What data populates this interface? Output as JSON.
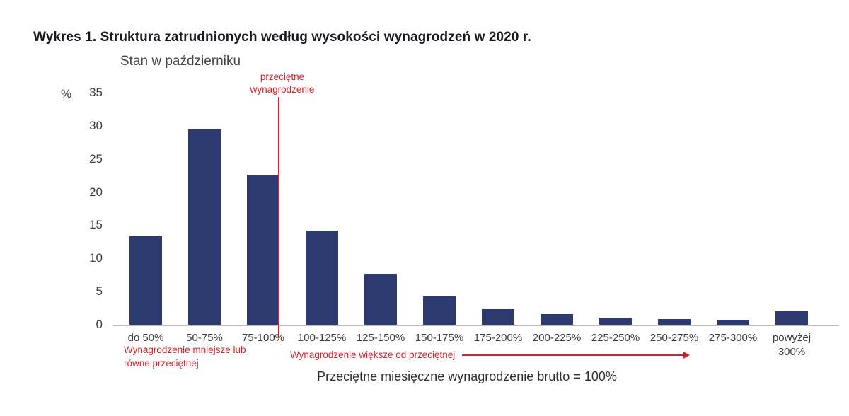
{
  "chart_data": {
    "type": "bar",
    "title": "Wykres 1. Struktura zatrudnionych według wysokości wynagrodzeń w 2020 r.",
    "subtitle": "Stan w październiku",
    "ylabel": "%",
    "ylim": [
      0,
      35
    ],
    "yticks": [
      0,
      5,
      10,
      15,
      20,
      25,
      30,
      35
    ],
    "grid": false,
    "legend": false,
    "categories": [
      "do 50%",
      "50-75%",
      "75-100%",
      "100-125%",
      "125-150%",
      "150-175%",
      "175-200%",
      "200-225%",
      "225-250%",
      "250-275%",
      "275-300%",
      "powyżej 300%"
    ],
    "values": [
      13.3,
      29.4,
      22.6,
      14.2,
      7.7,
      4.3,
      2.4,
      1.6,
      1.1,
      0.9,
      0.7,
      2.0
    ],
    "annotations": {
      "avg_line_label": "przeciętne wynagrodzenie",
      "left_note": "Wynagrodzenie mniejsze lub równe przeciętnej",
      "right_note": "Wynagrodzenie większe od przeciętnej",
      "xlabel": "Przeciętne miesięczne wynagrodzenie brutto = 100%"
    },
    "colors": {
      "bar": "#2c3a70",
      "accent_red": "#d2232a",
      "axis": "#bcbcbc",
      "text": "#3c3c3c"
    }
  }
}
